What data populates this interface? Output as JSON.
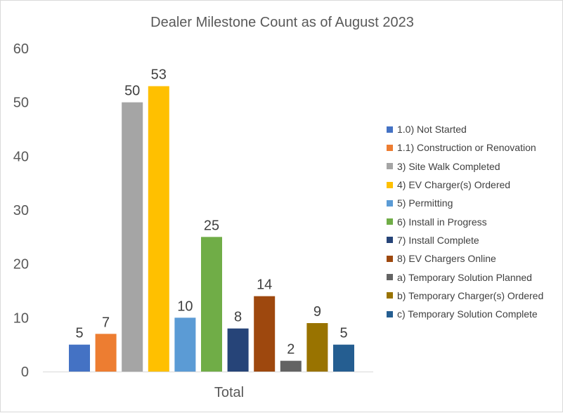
{
  "chart_data": {
    "type": "bar",
    "title": "Dealer Milestone Count as of August 2023",
    "xlabel": "",
    "ylabel": "",
    "categories": [
      "Total"
    ],
    "ylim": [
      0,
      60
    ],
    "yticks": [
      0,
      10,
      20,
      30,
      40,
      50,
      60
    ],
    "grid": false,
    "legend_position": "right",
    "series": [
      {
        "name": "1.0) Not Started",
        "values": [
          5
        ],
        "color": "#4472c4"
      },
      {
        "name": "1.1) Construction or Renovation",
        "values": [
          7
        ],
        "color": "#ed7d31"
      },
      {
        "name": "3) Site Walk Completed",
        "values": [
          50
        ],
        "color": "#a5a5a5"
      },
      {
        "name": "4) EV Charger(s) Ordered",
        "values": [
          53
        ],
        "color": "#ffc000"
      },
      {
        "name": "5) Permitting",
        "values": [
          10
        ],
        "color": "#5b9bd5"
      },
      {
        "name": "6) Install in Progress",
        "values": [
          25
        ],
        "color": "#70ad47"
      },
      {
        "name": "7) Install Complete",
        "values": [
          8
        ],
        "color": "#264478"
      },
      {
        "name": "8) EV Chargers Online",
        "values": [
          14
        ],
        "color": "#9e480e"
      },
      {
        "name": "a) Temporary Solution Planned",
        "values": [
          2
        ],
        "color": "#636363"
      },
      {
        "name": "b) Temporary Charger(s) Ordered",
        "values": [
          9
        ],
        "color": "#997300"
      },
      {
        "name": "c) Temporary Solution Complete",
        "values": [
          5
        ],
        "color": "#255e91"
      }
    ]
  }
}
